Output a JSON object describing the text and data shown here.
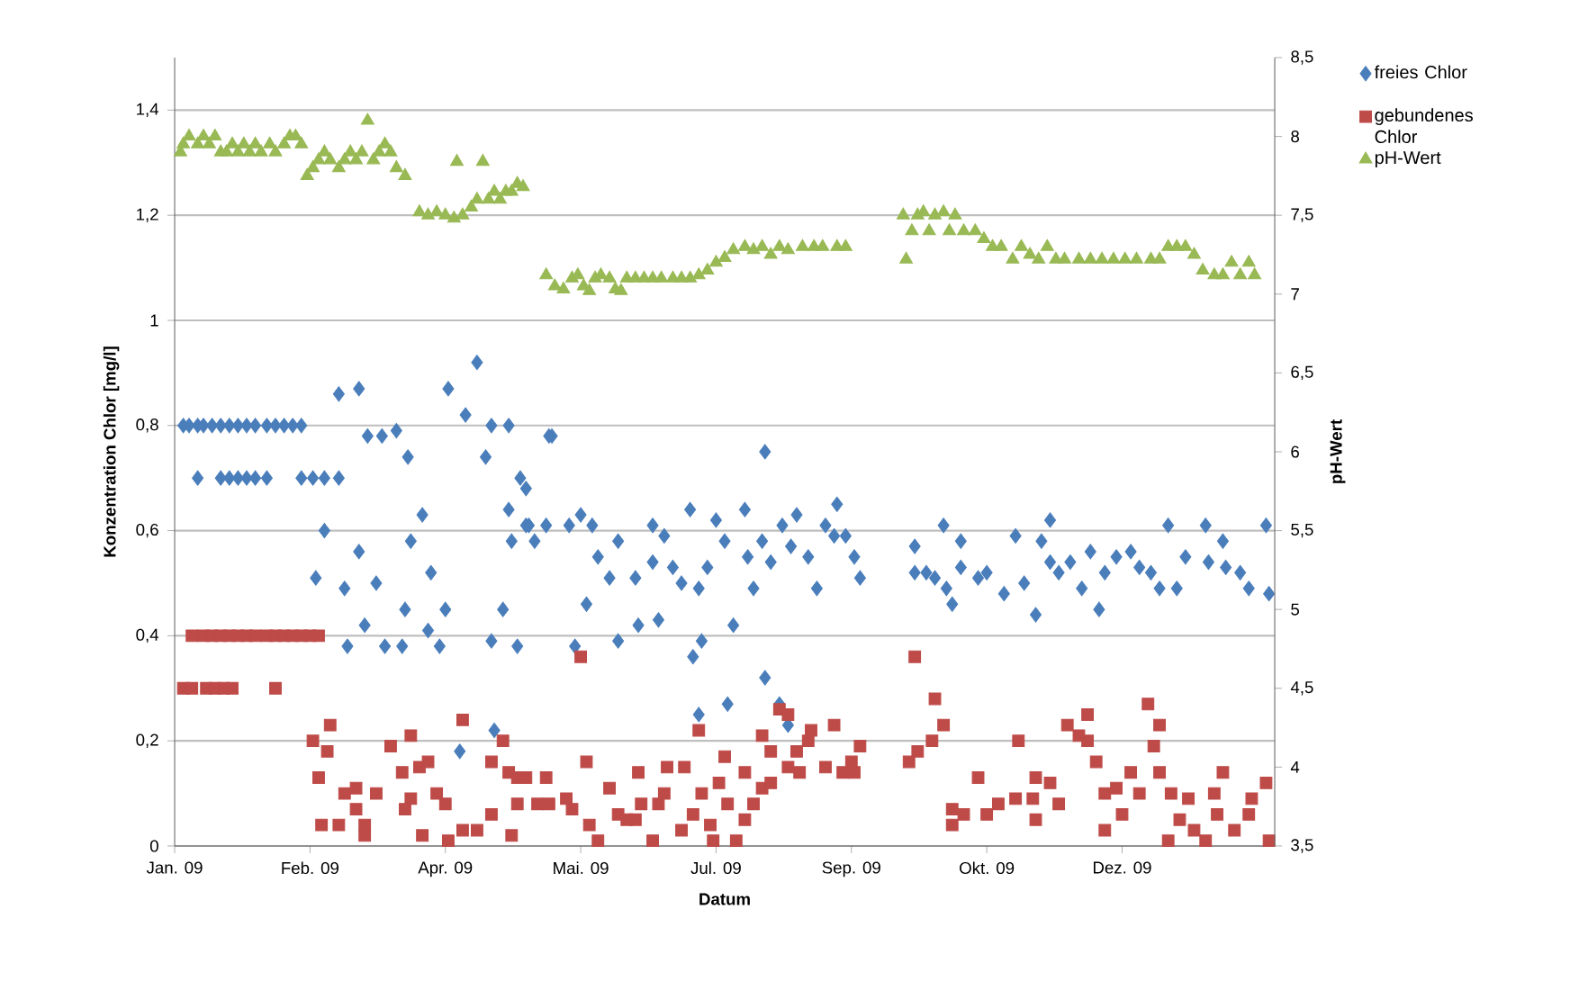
{
  "chart_data": {
    "type": "scatter",
    "xlabel": "Datum",
    "ylabel": "Konzentration Chlor [mg/l]",
    "y2label": "pH-Wert",
    "xlim": [
      "2009-01-10",
      "2010-01-27"
    ],
    "xticks": [
      {
        "value": "2009-01-10",
        "label": "Jan. 09"
      },
      {
        "value": "2009-02-26",
        "label": "Feb. 09"
      },
      {
        "value": "2009-04-14",
        "label": "Apr. 09"
      },
      {
        "value": "2009-05-31",
        "label": "Mai. 09"
      },
      {
        "value": "2009-07-17",
        "label": "Jul. 09"
      },
      {
        "value": "2009-09-02",
        "label": "Sep. 09"
      },
      {
        "value": "2009-10-19",
        "label": "Okt. 09"
      },
      {
        "value": "2009-12-05",
        "label": "Dez. 09"
      }
    ],
    "ylim": [
      0,
      1.5
    ],
    "yticks": [
      0,
      {
        "value": 0.2,
        "label": "0,2"
      },
      {
        "value": 0.4,
        "label": "0,4"
      },
      {
        "value": 0.6,
        "label": "0,6"
      },
      {
        "value": 0.8,
        "label": "0,8"
      },
      1,
      {
        "value": 1.2,
        "label": "1,2"
      },
      {
        "value": 1.4,
        "label": "1,4"
      }
    ],
    "y2lim": [
      3.5,
      8.5
    ],
    "y2ticks": [
      {
        "value": 3.5,
        "label": "3,5"
      },
      4,
      {
        "value": 4.5,
        "label": "4,5"
      },
      5,
      {
        "value": 5.5,
        "label": "5,5"
      },
      6,
      {
        "value": 6.5,
        "label": "6,5"
      },
      7,
      {
        "value": 7.5,
        "label": "7,5"
      },
      8,
      {
        "value": 8.5,
        "label": "8,5"
      }
    ],
    "grid": "y",
    "legend": "right",
    "series": [
      {
        "name": "freies Chlor",
        "color": "#4a7ebb",
        "marker": "diamond",
        "x": [
          "2009-01-13",
          "2009-01-15",
          "2009-01-18",
          "2009-01-20",
          "2009-01-23",
          "2009-01-26",
          "2009-01-29",
          "2009-02-01",
          "2009-02-04",
          "2009-02-07",
          "2009-02-11",
          "2009-02-14",
          "2009-02-17",
          "2009-02-20",
          "2009-02-23",
          "2009-01-18",
          "2009-01-26",
          "2009-01-29",
          "2009-02-01",
          "2009-02-04",
          "2009-02-07",
          "2009-02-11",
          "2009-02-23",
          "2009-02-27",
          "2009-03-03",
          "2009-03-08",
          "2009-03-08",
          "2009-03-15",
          "2009-03-03",
          "2009-02-28",
          "2009-03-10",
          "2009-03-15",
          "2009-03-11",
          "2009-03-17",
          "2009-03-21",
          "2009-03-18",
          "2009-03-23",
          "2009-03-28",
          "2009-04-01",
          "2009-03-24",
          "2009-03-30",
          "2009-03-31",
          "2009-04-02",
          "2009-04-06",
          "2009-04-09",
          "2009-04-08",
          "2009-04-12",
          "2009-04-14",
          "2009-04-15",
          "2009-04-25",
          "2009-04-21",
          "2009-04-30",
          "2009-05-06",
          "2009-04-28",
          "2009-05-06",
          "2009-05-07",
          "2009-05-04",
          "2009-04-30",
          "2009-05-09",
          "2009-04-19",
          "2009-05-01",
          "2009-05-10",
          "2009-05-12",
          "2009-05-20",
          "2009-05-12",
          "2009-05-13",
          "2009-05-19",
          "2009-05-21",
          "2009-05-15",
          "2009-05-27",
          "2009-05-31",
          "2009-06-04",
          "2009-05-29",
          "2009-06-02",
          "2009-06-06",
          "2009-06-10",
          "2009-06-13",
          "2009-06-13",
          "2009-06-19",
          "2009-06-20",
          "2009-06-25",
          "2009-06-25",
          "2009-06-27",
          "2009-06-29",
          "2009-07-02",
          "2009-07-05",
          "2009-07-08",
          "2009-07-11",
          "2009-07-09",
          "2009-07-12",
          "2009-07-11",
          "2009-07-14",
          "2009-07-17",
          "2009-07-20",
          "2009-07-21",
          "2009-07-23",
          "2009-07-27",
          "2009-07-28",
          "2009-07-30",
          "2009-08-02",
          "2009-08-03",
          "2009-08-03",
          "2009-08-05",
          "2009-08-08",
          "2009-08-11",
          "2009-08-09",
          "2009-08-12",
          "2009-08-14",
          "2009-08-18",
          "2009-08-21",
          "2009-08-24",
          "2009-08-28",
          "2009-08-27",
          "2009-08-31",
          "2009-09-03",
          "2009-09-05",
          "2009-09-24",
          "2009-09-24",
          "2009-09-28",
          "2009-10-04",
          "2009-10-01",
          "2009-10-05",
          "2009-10-07",
          "2009-10-10",
          "2009-10-10",
          "2009-10-16",
          "2009-10-19",
          "2009-10-25",
          "2009-10-29",
          "2009-11-01",
          "2009-11-05",
          "2009-11-07",
          "2009-11-10",
          "2009-11-10",
          "2009-11-13",
          "2009-11-17",
          "2009-11-21",
          "2009-11-24",
          "2009-11-27",
          "2009-11-29",
          "2009-12-03",
          "2009-12-08",
          "2009-12-11",
          "2009-12-15",
          "2009-12-18",
          "2009-12-21",
          "2009-12-24",
          "2009-12-27",
          "2010-01-03",
          "2010-01-04",
          "2010-01-09",
          "2010-01-10",
          "2010-01-15",
          "2010-01-18",
          "2010-01-24",
          "2010-01-25"
        ],
        "values": [
          0.8,
          0.8,
          0.8,
          0.8,
          0.8,
          0.8,
          0.8,
          0.8,
          0.8,
          0.8,
          0.8,
          0.8,
          0.8,
          0.8,
          0.8,
          0.7,
          0.7,
          0.7,
          0.7,
          0.7,
          0.7,
          0.7,
          0.7,
          0.7,
          0.7,
          0.7,
          0.86,
          0.87,
          0.6,
          0.51,
          0.49,
          0.56,
          0.38,
          0.42,
          0.5,
          0.78,
          0.78,
          0.79,
          0.74,
          0.38,
          0.38,
          0.45,
          0.58,
          0.63,
          0.52,
          0.41,
          0.38,
          0.45,
          0.87,
          0.92,
          0.82,
          0.8,
          0.8,
          0.74,
          0.64,
          0.58,
          0.45,
          0.39,
          0.38,
          0.18,
          0.22,
          0.7,
          0.61,
          0.78,
          0.68,
          0.61,
          0.61,
          0.78,
          0.58,
          0.61,
          0.63,
          0.61,
          0.38,
          0.46,
          0.55,
          0.51,
          0.58,
          0.39,
          0.51,
          0.42,
          0.61,
          0.54,
          0.43,
          0.59,
          0.53,
          0.5,
          0.64,
          0.49,
          0.36,
          0.39,
          0.25,
          0.53,
          0.62,
          0.58,
          0.27,
          0.42,
          0.64,
          0.55,
          0.49,
          0.58,
          0.75,
          0.32,
          0.54,
          0.27,
          0.23,
          0.61,
          0.57,
          0.63,
          0.55,
          0.49,
          0.61,
          0.65,
          0.59,
          0.59,
          0.55,
          0.51,
          0.57,
          0.52,
          0.52,
          0.61,
          0.51,
          0.49,
          0.46,
          0.58,
          0.53,
          0.51,
          0.52,
          0.48,
          0.59,
          0.5,
          0.44,
          0.58,
          0.62,
          0.54,
          0.52,
          0.54,
          0.49,
          0.56,
          0.45,
          0.52,
          0.55,
          0.56,
          0.53,
          0.52,
          0.49,
          0.61,
          0.49,
          0.55,
          0.61,
          0.54,
          0.58,
          0.53,
          0.52,
          0.49,
          0.61,
          0.48
        ]
      },
      {
        "name": "gebundenes Chlor",
        "color": "#be4b48",
        "marker": "square",
        "x": [
          "2009-01-16",
          "2009-01-20",
          "2009-01-23",
          "2009-01-26",
          "2009-01-29",
          "2009-02-01",
          "2009-02-04",
          "2009-02-07",
          "2009-02-11",
          "2009-02-14",
          "2009-02-17",
          "2009-02-20",
          "2009-02-23",
          "2009-02-26",
          "2009-03-01",
          "2009-01-13",
          "2009-01-16",
          "2009-01-21",
          "2009-01-24",
          "2009-01-27",
          "2009-01-30",
          "2009-02-14",
          "2009-03-05",
          "2009-02-27",
          "2009-03-04",
          "2009-03-01",
          "2009-03-10",
          "2009-03-14",
          "2009-03-14",
          "2009-03-17",
          "2009-03-02",
          "2009-03-08",
          "2009-03-17",
          "2009-03-21",
          "2009-03-26",
          "2009-04-02",
          "2009-03-30",
          "2009-04-05",
          "2009-04-08",
          "2009-04-02",
          "2009-03-31",
          "2009-04-11",
          "2009-04-14",
          "2009-04-06",
          "2009-04-15",
          "2009-04-20",
          "2009-04-20",
          "2009-04-25",
          "2009-04-30",
          "2009-04-30",
          "2009-05-04",
          "2009-05-06",
          "2009-05-09",
          "2009-05-09",
          "2009-05-07",
          "2009-05-12",
          "2009-05-16",
          "2009-05-19",
          "2009-05-20",
          "2009-05-26",
          "2009-05-28",
          "2009-05-31",
          "2009-06-02",
          "2009-06-03",
          "2009-06-06",
          "2009-06-10",
          "2009-06-13",
          "2009-06-16",
          "2009-06-19",
          "2009-06-20",
          "2009-06-21",
          "2009-06-25",
          "2009-06-27",
          "2009-06-29",
          "2009-06-30",
          "2009-07-05",
          "2009-07-06",
          "2009-07-09",
          "2009-07-11",
          "2009-07-12",
          "2009-07-15",
          "2009-07-16",
          "2009-07-18",
          "2009-07-20",
          "2009-07-21",
          "2009-07-24",
          "2009-07-27",
          "2009-07-27",
          "2009-07-30",
          "2009-08-02",
          "2009-08-02",
          "2009-08-05",
          "2009-08-05",
          "2009-08-08",
          "2009-08-11",
          "2009-08-11",
          "2009-08-14",
          "2009-08-18",
          "2009-08-19",
          "2009-08-15",
          "2009-08-24",
          "2009-08-27",
          "2009-08-30",
          "2009-09-02",
          "2009-09-03",
          "2009-09-05",
          "2009-09-24",
          "2009-09-22",
          "2009-09-25",
          "2009-09-30",
          "2009-10-01",
          "2009-10-04",
          "2009-10-07",
          "2009-10-07",
          "2009-10-11",
          "2009-10-16",
          "2009-10-19",
          "2009-10-23",
          "2009-10-29",
          "2009-10-30",
          "2009-11-04",
          "2009-11-05",
          "2009-11-05",
          "2009-11-10",
          "2009-11-13",
          "2009-11-16",
          "2009-11-20",
          "2009-11-23",
          "2009-11-23",
          "2009-11-26",
          "2009-11-29",
          "2009-11-29",
          "2009-12-03",
          "2009-12-05",
          "2009-12-08",
          "2009-12-11",
          "2009-12-14",
          "2009-12-18",
          "2009-12-16",
          "2009-12-18",
          "2009-12-21",
          "2009-12-22",
          "2009-12-25",
          "2009-12-28",
          "2009-12-30",
          "2010-01-03",
          "2010-01-06",
          "2010-01-07",
          "2010-01-09",
          "2010-01-13",
          "2010-01-18",
          "2010-01-19",
          "2010-01-24",
          "2010-01-25"
        ],
        "values": [
          0.4,
          0.4,
          0.4,
          0.4,
          0.4,
          0.4,
          0.4,
          0.4,
          0.4,
          0.4,
          0.4,
          0.4,
          0.4,
          0.4,
          0.4,
          0.3,
          0.3,
          0.3,
          0.3,
          0.3,
          0.3,
          0.3,
          0.23,
          0.2,
          0.18,
          0.13,
          0.1,
          0.11,
          0.07,
          0.04,
          0.04,
          0.04,
          0.02,
          0.1,
          0.19,
          0.21,
          0.14,
          0.15,
          0.16,
          0.09,
          0.07,
          0.1,
          0.08,
          0.02,
          0.01,
          0.24,
          0.03,
          0.03,
          0.06,
          0.16,
          0.2,
          0.14,
          0.13,
          0.08,
          0.02,
          0.13,
          0.08,
          0.13,
          0.08,
          0.09,
          0.07,
          0.36,
          0.16,
          0.04,
          0.01,
          0.11,
          0.06,
          0.05,
          0.05,
          0.14,
          0.08,
          0.01,
          0.08,
          0.1,
          0.15,
          0.03,
          0.15,
          0.06,
          0.22,
          0.1,
          0.04,
          0.01,
          0.12,
          0.17,
          0.08,
          0.01,
          0.05,
          0.14,
          0.08,
          0.11,
          0.21,
          0.18,
          0.12,
          0.26,
          0.25,
          0.15,
          0.18,
          0.2,
          0.22,
          0.14,
          0.15,
          0.23,
          0.14,
          0.16,
          0.14,
          0.19,
          0.36,
          0.16,
          0.18,
          0.2,
          0.28,
          0.23,
          0.07,
          0.04,
          0.06,
          0.13,
          0.06,
          0.08,
          0.09,
          0.2,
          0.09,
          0.13,
          0.05,
          0.12,
          0.08,
          0.23,
          0.21,
          0.25,
          0.2,
          0.16,
          0.03,
          0.1,
          0.11,
          0.06,
          0.14,
          0.1,
          0.27,
          0.23,
          0.19,
          0.14,
          0.01,
          0.1,
          0.05,
          0.09,
          0.03,
          0.01,
          0.1,
          0.06,
          0.14,
          0.03,
          0.06,
          0.09,
          0.12,
          0.01
        ]
      },
      {
        "name": "pH-Wert",
        "color": "#98b954",
        "marker": "triangle",
        "axis": "y2",
        "x": [
          "2009-01-12",
          "2009-01-13",
          "2009-01-15",
          "2009-01-18",
          "2009-01-20",
          "2009-01-22",
          "2009-01-24",
          "2009-01-26",
          "2009-01-28",
          "2009-01-30",
          "2009-02-01",
          "2009-02-03",
          "2009-02-05",
          "2009-02-07",
          "2009-02-09",
          "2009-02-12",
          "2009-02-14",
          "2009-02-17",
          "2009-02-19",
          "2009-02-21",
          "2009-02-23",
          "2009-02-25",
          "2009-02-27",
          "2009-03-01",
          "2009-03-03",
          "2009-03-05",
          "2009-03-08",
          "2009-03-10",
          "2009-03-12",
          "2009-03-14",
          "2009-03-16",
          "2009-03-18",
          "2009-03-20",
          "2009-03-22",
          "2009-03-24",
          "2009-03-26",
          "2009-03-28",
          "2009-03-31",
          "2009-04-05",
          "2009-04-08",
          "2009-04-11",
          "2009-04-14",
          "2009-04-17",
          "2009-04-18",
          "2009-04-20",
          "2009-04-23",
          "2009-04-25",
          "2009-04-27",
          "2009-04-29",
          "2009-05-01",
          "2009-05-03",
          "2009-05-05",
          "2009-05-07",
          "2009-05-09",
          "2009-05-11",
          "2009-05-19",
          "2009-05-22",
          "2009-05-25",
          "2009-05-28",
          "2009-05-30",
          "2009-06-01",
          "2009-06-03",
          "2009-06-05",
          "2009-06-07",
          "2009-06-10",
          "2009-06-12",
          "2009-06-14",
          "2009-06-16",
          "2009-06-19",
          "2009-06-22",
          "2009-06-25",
          "2009-06-28",
          "2009-07-02",
          "2009-07-05",
          "2009-07-08",
          "2009-07-11",
          "2009-07-14",
          "2009-07-17",
          "2009-07-20",
          "2009-07-23",
          "2009-07-27",
          "2009-07-30",
          "2009-08-02",
          "2009-08-05",
          "2009-08-08",
          "2009-08-11",
          "2009-08-16",
          "2009-08-20",
          "2009-08-23",
          "2009-08-28",
          "2009-08-31",
          "2009-09-20",
          "2009-09-21",
          "2009-09-23",
          "2009-09-25",
          "2009-09-27",
          "2009-09-29",
          "2009-10-01",
          "2009-10-04",
          "2009-10-06",
          "2009-10-08",
          "2009-10-11",
          "2009-10-15",
          "2009-10-18",
          "2009-10-21",
          "2009-10-24",
          "2009-10-28",
          "2009-10-31",
          "2009-11-03",
          "2009-11-06",
          "2009-11-09",
          "2009-11-12",
          "2009-11-15",
          "2009-11-20",
          "2009-11-24",
          "2009-11-28",
          "2009-12-02",
          "2009-12-06",
          "2009-12-10",
          "2009-12-15",
          "2009-12-18",
          "2009-12-21",
          "2009-12-24",
          "2009-12-27",
          "2009-12-30",
          "2010-01-02",
          "2010-01-06",
          "2010-01-09",
          "2010-01-12",
          "2010-01-15",
          "2010-01-18",
          "2010-01-20"
        ],
        "values": [
          7.9,
          7.95,
          8.0,
          7.95,
          8.0,
          7.95,
          8.0,
          7.9,
          7.9,
          7.95,
          7.9,
          7.95,
          7.9,
          7.95,
          7.9,
          7.95,
          7.9,
          7.95,
          8.0,
          8.0,
          7.95,
          7.75,
          7.8,
          7.85,
          7.9,
          7.85,
          7.8,
          7.85,
          7.9,
          7.85,
          7.9,
          8.1,
          7.85,
          7.9,
          7.95,
          7.9,
          7.8,
          7.75,
          7.52,
          7.5,
          7.52,
          7.5,
          7.48,
          7.84,
          7.5,
          7.55,
          7.6,
          7.84,
          7.6,
          7.65,
          7.6,
          7.65,
          7.65,
          7.7,
          7.68,
          7.12,
          7.05,
          7.03,
          7.1,
          7.12,
          7.05,
          7.02,
          7.1,
          7.12,
          7.1,
          7.03,
          7.02,
          7.1,
          7.1,
          7.1,
          7.1,
          7.1,
          7.1,
          7.1,
          7.1,
          7.12,
          7.15,
          7.2,
          7.23,
          7.28,
          7.3,
          7.28,
          7.3,
          7.25,
          7.3,
          7.28,
          7.3,
          7.3,
          7.3,
          7.3,
          7.3,
          7.5,
          7.22,
          7.4,
          7.5,
          7.52,
          7.4,
          7.5,
          7.52,
          7.4,
          7.5,
          7.4,
          7.4,
          7.35,
          7.3,
          7.3,
          7.22,
          7.3,
          7.25,
          7.22,
          7.3,
          7.22,
          7.22,
          7.22,
          7.22,
          7.22,
          7.22,
          7.22,
          7.22,
          7.22,
          7.22,
          7.3,
          7.3,
          7.3,
          7.25,
          7.15,
          7.12,
          7.12,
          7.2,
          7.12,
          7.2,
          7.12
        ]
      }
    ]
  }
}
